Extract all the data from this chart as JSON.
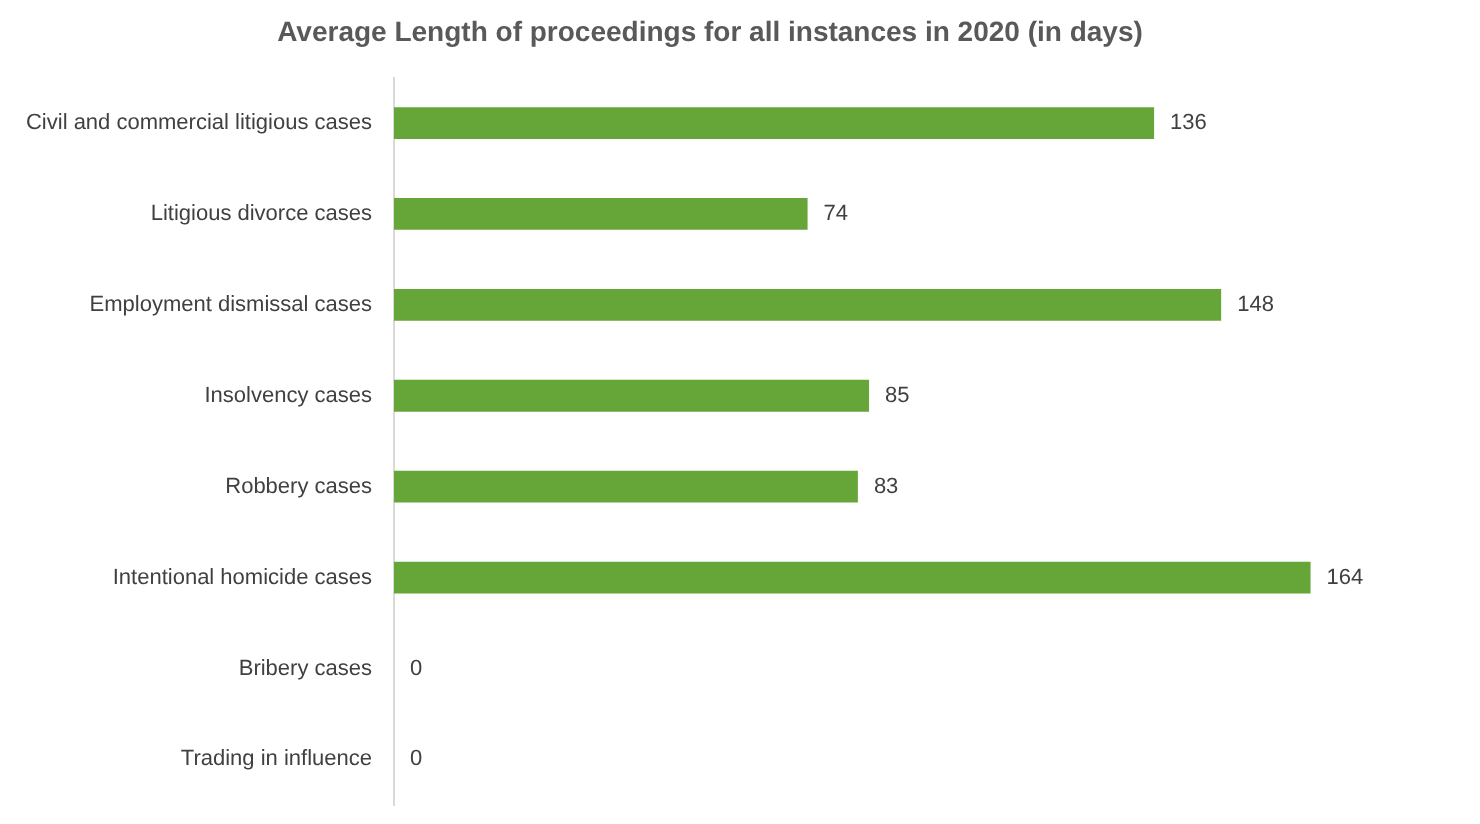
{
  "chart_data": {
    "type": "bar",
    "orientation": "horizontal",
    "title": "Average Length of proceedings for all instances in 2020 (in days)",
    "categories": [
      "Civil and commercial litigious cases",
      "Litigious divorce cases",
      "Employment dismissal cases",
      "Insolvency cases",
      "Robbery cases",
      "Intentional homicide cases",
      "Bribery cases",
      "Trading in influence"
    ],
    "values": [
      136,
      74,
      148,
      85,
      83,
      164,
      0,
      0
    ],
    "color": "#66a638",
    "data_labels": true,
    "legend": false,
    "tick_labels": "y"
  }
}
